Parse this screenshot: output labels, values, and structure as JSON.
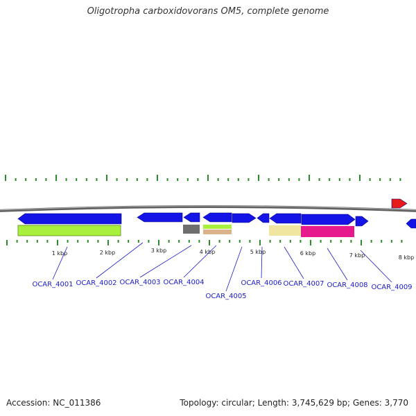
{
  "title": "Oligotropha carboxidovorans OM5, complete genome",
  "footer": {
    "accession_label": "Accession: NC_011386",
    "summary_label": "Topology: circular; Length: 3,745,629 bp; Genes: 3,770"
  },
  "colors": {
    "backbone": "#808080",
    "tick": "#2d8a2d",
    "cds_forward": "#1414e6",
    "cds_reverse": "#1414e6",
    "rna_red": "#e61a1a",
    "label_blue": "#1a1acc",
    "lime": "#a8f03c",
    "gray": "#6e6e6e",
    "tan": "#d9b38c",
    "khaki": "#f0e6a0",
    "magenta": "#e61a8c"
  },
  "scale": {
    "unit": "kbp",
    "ticks": [
      "1 kbp",
      "2 kbp",
      "3 kbp",
      "4 kbp",
      "5 kbp",
      "6 kbp",
      "7 kbp",
      "8 kbp"
    ]
  },
  "genes": [
    {
      "label": "OCAR_4001"
    },
    {
      "label": "OCAR_4002"
    },
    {
      "label": "OCAR_4003"
    },
    {
      "label": "OCAR_4004"
    },
    {
      "label": "OCAR_4005"
    },
    {
      "label": "OCAR_4006"
    },
    {
      "label": "OCAR_4007"
    },
    {
      "label": "OCAR_4008"
    },
    {
      "label": "OCAR_4009"
    }
  ]
}
